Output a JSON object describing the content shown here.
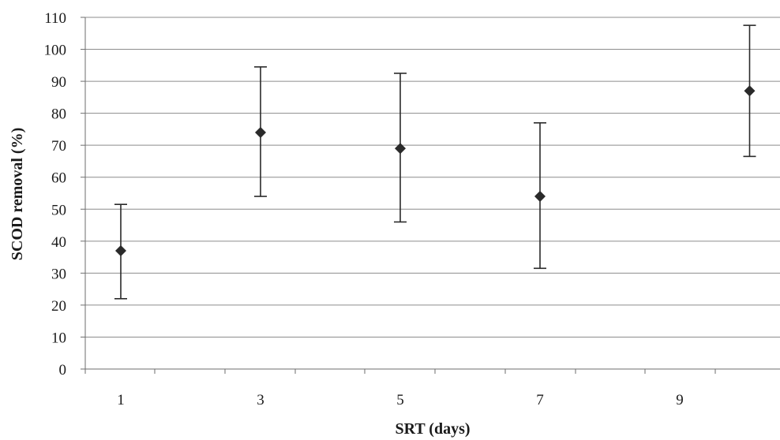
{
  "chart_data": {
    "type": "scatter",
    "title": "",
    "xlabel": "SRT (days)",
    "ylabel": "SCOD removal (%)",
    "ylim": [
      0,
      110
    ],
    "yticks": [
      0,
      10,
      20,
      30,
      40,
      50,
      60,
      70,
      80,
      90,
      100,
      110
    ],
    "xtick_labels": [
      "1",
      "3",
      "5",
      "7",
      "9"
    ],
    "grid": "horizontal",
    "series": [
      {
        "points": [
          {
            "x": 1,
            "y": 37,
            "err_low": 22,
            "err_high": 51.5
          },
          {
            "x": 3,
            "y": 74,
            "err_low": 54,
            "err_high": 94.5
          },
          {
            "x": 5,
            "y": 69,
            "err_low": 46,
            "err_high": 92.5
          },
          {
            "x": 7,
            "y": 54,
            "err_low": 31.5,
            "err_high": 77
          },
          {
            "x": 10,
            "y": 87,
            "err_low": 66.5,
            "err_high": 107.5
          }
        ]
      }
    ],
    "colors": {
      "marker": "#2a2a2a",
      "grid": "#8c8c8c"
    }
  }
}
